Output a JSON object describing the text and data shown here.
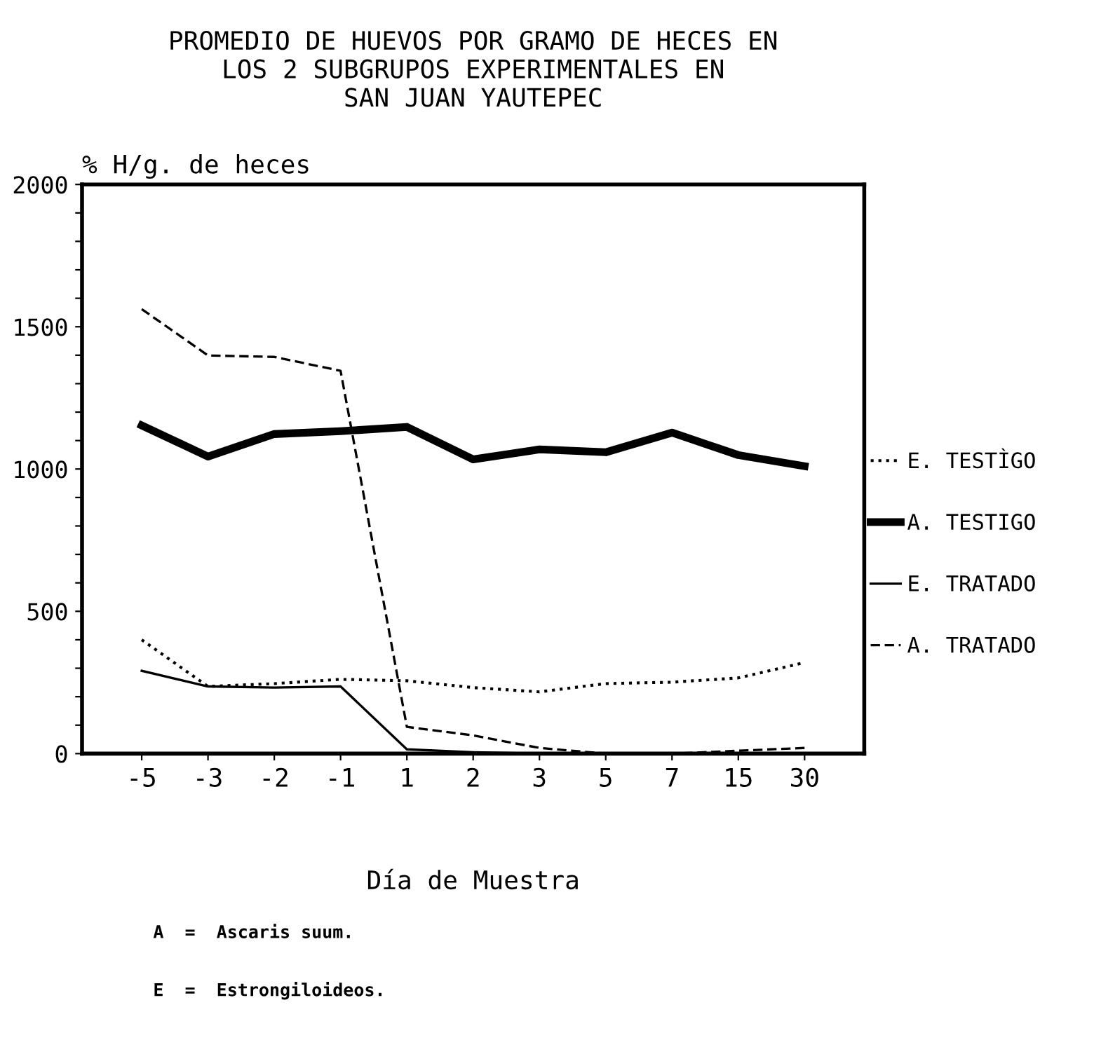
{
  "chart_data": {
    "type": "line",
    "title": "PROMEDIO DE HUEVOS POR GRAMO DE HECES EN\nLOS 2 SUBGRUPOS EXPERIMENTALES EN\nSAN JUAN YAUTEPEC",
    "xlabel": "Día de Muestra",
    "ylabel": "% H/g. de heces",
    "categories": [
      "-5",
      "-3",
      "-2",
      "-1",
      "1",
      "2",
      "3",
      "5",
      "7",
      "15",
      "30"
    ],
    "ylim": [
      0,
      2000
    ],
    "yticks": [
      0,
      {
        "value": 100,
        "label": null
      },
      {
        "value": 200,
        "label": null
      },
      {
        "value": 300,
        "label": null
      },
      {
        "value": 400,
        "label": null
      },
      500,
      {
        "value": 600,
        "label": null
      },
      {
        "value": 700,
        "label": null
      },
      {
        "value": 800,
        "label": null
      },
      {
        "value": 900,
        "label": null
      },
      1000,
      {
        "value": 1100,
        "label": null
      },
      {
        "value": 1200,
        "label": null
      },
      {
        "value": 1300,
        "label": null
      },
      {
        "value": 1400,
        "label": null
      },
      1500,
      {
        "value": 1600,
        "label": null
      },
      {
        "value": 1700,
        "label": null
      },
      {
        "value": 1800,
        "label": null
      },
      {
        "value": 1900,
        "label": null
      },
      2000
    ],
    "series": [
      {
        "name": "E. TESTÌGO",
        "color": "#000000",
        "line_style": "dotted",
        "values": [
          400,
          236,
          246,
          261,
          256,
          232,
          217,
          246,
          251,
          266,
          320
        ]
      },
      {
        "name": "A. TESTIGO",
        "color": "#000000",
        "line_style": "solid",
        "values": [
          1153,
          1044,
          1123,
          1133,
          1148,
          1034,
          1069,
          1059,
          1128,
          1049,
          1010
        ]
      },
      {
        "name": "E. TRATADO",
        "color": "#000000",
        "line_style": "solid",
        "values": [
          291,
          236,
          232,
          236,
          15,
          5,
          0,
          0,
          0,
          0,
          0
        ]
      },
      {
        "name": "A. TRATADO",
        "color": "#000000",
        "line_style": "dashed",
        "values": [
          1562,
          1399,
          1394,
          1345,
          94,
          64,
          20,
          0,
          0,
          10,
          20
        ]
      }
    ],
    "legend": "right",
    "grid": false,
    "annotations": [
      "A  =  Ascaris suum.",
      "E  =  Estrongiloideos."
    ]
  }
}
